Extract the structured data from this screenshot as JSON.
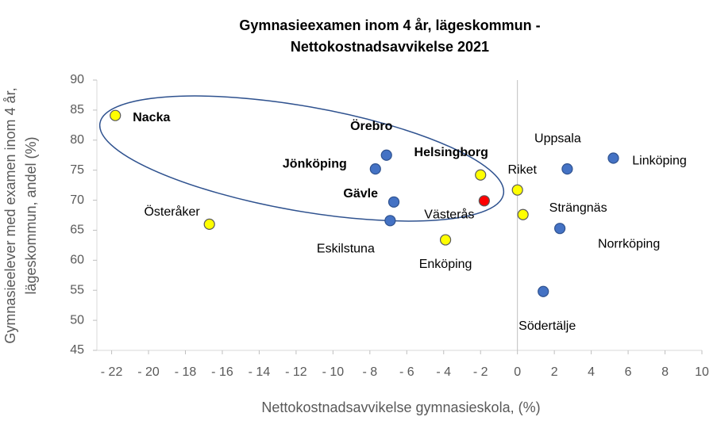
{
  "chart_data": {
    "type": "scatter",
    "title": [
      "Gymnasieexamen inom 4 år, lägeskommun -",
      "Nettokostnadsavvikelse 2021"
    ],
    "xlabel": "Nettokostnadsavvikelse gymnasieskola, (%)",
    "ylabel": [
      "Gymnasieelever med examen inom 4 år,",
      "lägeskommun, andel (%)"
    ],
    "labels": [
      "Nacka",
      "Österåker",
      "Eskilstuna",
      "Gävle",
      "Jönköping",
      "Örebro",
      "Helsingborg",
      "Västerås",
      "Enköping",
      "Riket",
      "Strängnäs",
      "Uppsala",
      "Linköping",
      "Norrköping",
      "Södertälje"
    ],
    "x": [
      -21.8,
      -16.7,
      -6.9,
      -6.7,
      -7.7,
      -7.1,
      -2.0,
      -1.8,
      -3.9,
      0,
      0.3,
      2.7,
      5.2,
      2.3,
      1.4
    ],
    "values": [
      84.1,
      66.0,
      66.6,
      69.7,
      75.2,
      77.5,
      74.2,
      69.9,
      63.4,
      71.7,
      67.6,
      75.2,
      77.0,
      65.3,
      54.8
    ],
    "colors": [
      "#ffff00",
      "#ffff00",
      "#4472c4",
      "#4472c4",
      "#4472c4",
      "#4472c4",
      "#ffff00",
      "#ff0000",
      "#ffff00",
      "#ffff00",
      "#ffff00",
      "#4472c4",
      "#4472c4",
      "#4472c4",
      "#4472c4"
    ],
    "bold": [
      true,
      false,
      false,
      true,
      true,
      true,
      true,
      false,
      false,
      false,
      false,
      false,
      false,
      false,
      false
    ],
    "xlim": [
      -22.8,
      10
    ],
    "ylim": [
      45,
      90
    ],
    "xticks": [
      {
        "value": -22,
        "label": "- 22"
      },
      {
        "value": -20,
        "label": "- 20"
      },
      {
        "value": -18,
        "label": "- 18"
      },
      {
        "value": -16,
        "label": "- 16"
      },
      {
        "value": -14,
        "label": "- 14"
      },
      {
        "value": -12,
        "label": "- 12"
      },
      {
        "value": -10,
        "label": "- 10"
      },
      {
        "value": -8,
        "label": "- 8"
      },
      {
        "value": -6,
        "label": "- 6"
      },
      {
        "value": -4,
        "label": "- 4"
      },
      {
        "value": -2,
        "label": "- 2"
      },
      0,
      2,
      4,
      6,
      8,
      10
    ],
    "yticks": [
      45,
      50,
      55,
      60,
      65,
      70,
      75,
      80,
      85,
      90
    ]
  }
}
